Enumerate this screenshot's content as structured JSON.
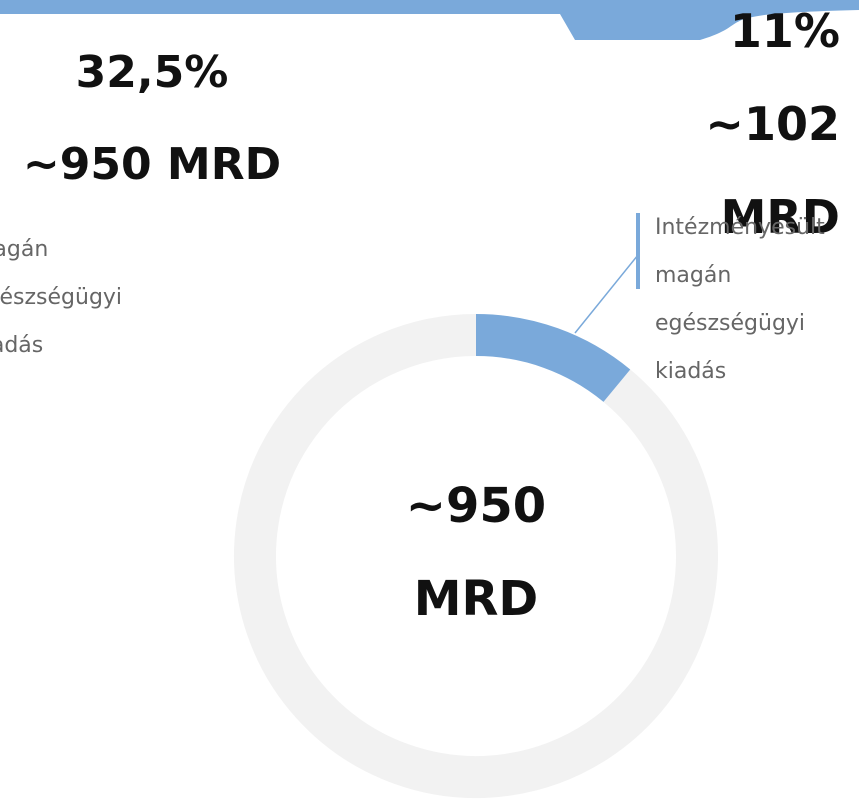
{
  "chart_data": {
    "type": "donut",
    "categories": [
      "Intézményesült magán egészségügyi kiadás",
      null
    ],
    "values": [
      11,
      89
    ],
    "value_labels": [
      "11%",
      null
    ],
    "colors": [
      "#7aa9da",
      "#f2f2f2"
    ],
    "segment_amount": "~102 MRD",
    "center_label": "~950 MRD"
  },
  "left_panel": {
    "percent": "32,5%",
    "amount": "~950 MRD",
    "label": "magán egészségügyi kiadás"
  }
}
